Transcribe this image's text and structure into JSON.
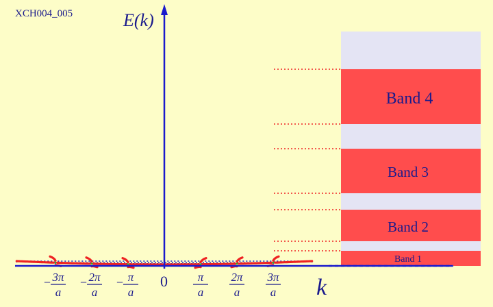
{
  "figure_id": "XCH004_005",
  "axes": {
    "y_label": "E(k)",
    "x_label": "k"
  },
  "ticks": {
    "left": [
      "-3π/a",
      "-2π/a",
      "-π/a"
    ],
    "zero": "0",
    "right": [
      "π/a",
      "2π/a",
      "3π/a"
    ]
  },
  "tick_parts": [
    {
      "sign": "−",
      "num": "3π",
      "den": "a"
    },
    {
      "sign": "−",
      "num": "2π",
      "den": "a"
    },
    {
      "sign": "−",
      "num": "π",
      "den": "a"
    },
    {
      "sign": "",
      "num": "π",
      "den": "a"
    },
    {
      "sign": "",
      "num": "2π",
      "den": "a"
    },
    {
      "sign": "",
      "num": "3π",
      "den": "a"
    }
  ],
  "bands": [
    {
      "label": "Band 1"
    },
    {
      "label": "Band 2"
    },
    {
      "label": "Band 3"
    },
    {
      "label": "Band 4"
    }
  ],
  "colors": {
    "background": "#fdfdc8",
    "axis": "#1a1acc",
    "free_electron_curve": "#22bb22",
    "band_curve": "#ee2222",
    "band_fill": "#ff4d4d",
    "gap_fill": "#e4e4f4",
    "guide_blue": "#2233cc",
    "guide_red": "#ee2222"
  }
}
